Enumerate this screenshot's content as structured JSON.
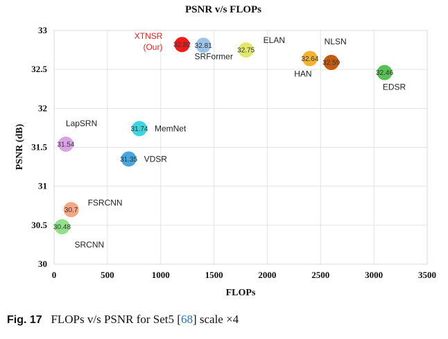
{
  "chart_data": {
    "type": "scatter",
    "title": "PSNR v/s FLOPs",
    "xlabel": "FLOPs",
    "ylabel": "PSNR (dB)",
    "xlim": [
      0,
      3500
    ],
    "ylim": [
      30,
      33
    ],
    "xticks": [
      "0",
      "500",
      "1000",
      "1500",
      "2000",
      "2500",
      "3000",
      "3500"
    ],
    "yticks": [
      "30",
      "30.5",
      "31",
      "31.5",
      "32",
      "32.5",
      "33"
    ],
    "grid": true,
    "points": [
      {
        "name": "XTNSR (Our)",
        "name_lines": [
          "XTNSR",
          "(Our)"
        ],
        "label_side": "left",
        "x": 1200,
        "y": 32.82,
        "value_label": "32.82",
        "color": "#ee1c1c"
      },
      {
        "name": "SRFormer",
        "label_side": "below-right",
        "x": 1400,
        "y": 32.81,
        "value_label": "32.81",
        "color": "#9dc3e6"
      },
      {
        "name": "ELAN",
        "label_side": "above-right",
        "x": 1800,
        "y": 32.75,
        "value_label": "32.75",
        "color": "#dfe86a"
      },
      {
        "name": "NLSN",
        "label_side": "above-right",
        "x": 2600,
        "y": 32.59,
        "value_label": "32.59",
        "color": "#c55a11"
      },
      {
        "name": "HAN",
        "label_side": "below-left",
        "x": 2400,
        "y": 32.64,
        "value_label": "32.64",
        "color": "#f2b233"
      },
      {
        "name": "EDSR",
        "label_side": "below",
        "x": 3100,
        "y": 32.46,
        "value_label": "32.46",
        "color": "#5bbf58"
      },
      {
        "name": "MemNet",
        "label_side": "right",
        "x": 800,
        "y": 31.74,
        "value_label": "31.74",
        "color": "#3fd4e0"
      },
      {
        "name": "LapSRN",
        "label_side": "above-right",
        "x": 110,
        "y": 31.54,
        "value_label": "31.54",
        "color": "#d9a3e6"
      },
      {
        "name": "VDSR",
        "label_side": "right",
        "x": 700,
        "y": 31.35,
        "value_label": "31.35",
        "color": "#4aa5dc"
      },
      {
        "name": "FSRCNN",
        "label_side": "above-right",
        "x": 160,
        "y": 30.7,
        "value_label": "30.7",
        "color": "#f4a886"
      },
      {
        "name": "SRCNN",
        "label_side": "below-right",
        "x": 75,
        "y": 30.48,
        "value_label": "30.48",
        "color": "#92e08a"
      }
    ]
  },
  "caption": {
    "fig_label": "Fig. 17",
    "text_before": "FLOPs v/s PSNR for Set5 [",
    "ref": "68",
    "text_after": "] scale ×4"
  }
}
